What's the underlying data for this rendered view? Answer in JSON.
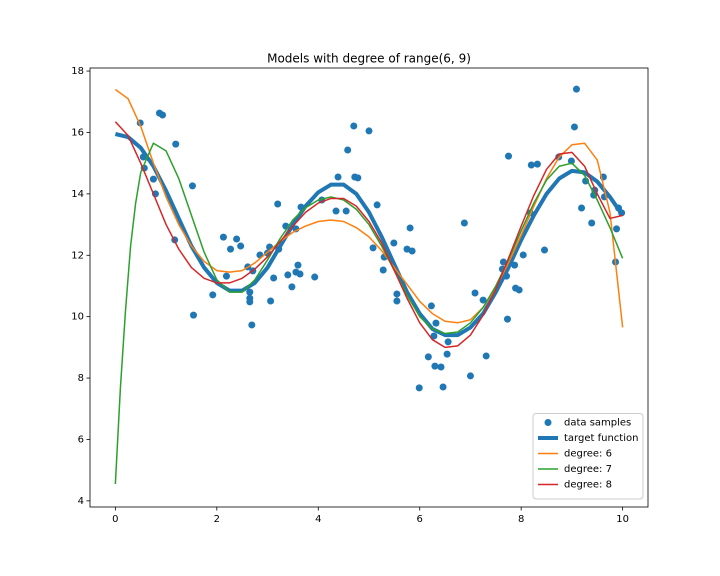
{
  "chart_data": {
    "type": "line",
    "title": "Models with degree of range(6, 9)",
    "xlim": [
      -0.5,
      10.5
    ],
    "ylim": [
      3.8,
      18.1
    ],
    "xticks": [
      0,
      2,
      4,
      6,
      8,
      10
    ],
    "yticks": [
      4,
      6,
      8,
      10,
      12,
      14,
      16,
      18
    ],
    "legend": "lower right",
    "series": [
      {
        "name": "data samples",
        "type": "scatter",
        "color": "#1f77b4",
        "x": [
          0.49,
          0.55,
          0.57,
          0.75,
          0.79,
          0.87,
          0.93,
          1.17,
          1.19,
          1.52,
          1.54,
          1.92,
          2.13,
          2.19,
          2.27,
          2.39,
          2.47,
          2.61,
          2.65,
          2.65,
          2.65,
          2.69,
          2.71,
          2.85,
          3.0,
          3.04,
          3.06,
          3.12,
          3.2,
          3.22,
          3.36,
          3.4,
          3.48,
          3.56,
          3.56,
          3.6,
          3.64,
          3.66,
          3.93,
          4.07,
          4.35,
          4.39,
          4.55,
          4.58,
          4.7,
          4.72,
          4.78,
          5.0,
          5.08,
          5.16,
          5.28,
          5.3,
          5.49,
          5.55,
          5.55,
          5.75,
          5.81,
          5.85,
          5.99,
          6.17,
          6.23,
          6.28,
          6.3,
          6.32,
          6.42,
          6.46,
          6.54,
          6.56,
          6.88,
          7.0,
          7.09,
          7.25,
          7.31,
          7.63,
          7.65,
          7.71,
          7.73,
          7.75,
          7.87,
          7.89,
          7.96,
          8.04,
          8.18,
          8.2,
          8.32,
          8.46,
          8.74,
          8.99,
          9.05,
          9.09,
          9.19,
          9.27,
          9.39,
          9.43,
          9.45,
          9.62,
          9.64,
          9.86,
          9.88,
          9.92,
          9.98
        ],
        "values": [
          16.31,
          15.2,
          14.84,
          14.48,
          14.0,
          16.63,
          16.57,
          12.5,
          15.62,
          14.26,
          10.05,
          10.71,
          12.59,
          11.32,
          12.2,
          12.53,
          12.3,
          11.62,
          10.8,
          10.6,
          10.48,
          9.73,
          11.49,
          12.01,
          12.07,
          12.27,
          10.51,
          11.26,
          13.67,
          12.2,
          12.95,
          11.36,
          10.97,
          12.86,
          11.45,
          11.68,
          11.39,
          13.57,
          11.29,
          13.8,
          13.44,
          14.55,
          13.44,
          15.43,
          16.21,
          14.55,
          14.52,
          16.05,
          12.24,
          13.64,
          11.52,
          11.94,
          12.4,
          10.74,
          10.51,
          12.2,
          12.89,
          12.14,
          7.68,
          8.69,
          10.35,
          9.37,
          8.39,
          9.79,
          8.36,
          7.71,
          8.78,
          9.18,
          13.05,
          8.07,
          10.77,
          10.54,
          8.72,
          11.55,
          11.78,
          11.32,
          9.92,
          15.23,
          11.68,
          10.93,
          10.87,
          12.01,
          13.38,
          14.94,
          14.97,
          12.17,
          15.2,
          15.07,
          16.18,
          17.41,
          13.54,
          14.42,
          13.05,
          13.96,
          14.12,
          14.55,
          13.9,
          11.78,
          12.86,
          13.54,
          13.38
        ]
      },
      {
        "name": "target function",
        "type": "line",
        "color": "#1f77b4",
        "line_width": 4,
        "x": [
          0,
          0.25,
          0.5,
          0.75,
          1,
          1.25,
          1.5,
          1.75,
          2,
          2.25,
          2.5,
          2.75,
          3,
          3.25,
          3.5,
          3.75,
          4,
          4.25,
          4.5,
          4.75,
          5,
          5.25,
          5.5,
          5.75,
          6,
          6.25,
          6.5,
          6.75,
          7,
          7.25,
          7.5,
          7.75,
          8,
          8.25,
          8.5,
          8.75,
          9,
          9.25,
          9.5,
          9.75,
          10
        ],
        "values": [
          15.95,
          15.85,
          15.5,
          14.9,
          14.1,
          13.2,
          12.3,
          11.6,
          11.1,
          10.85,
          10.85,
          11.1,
          11.6,
          12.3,
          13.0,
          13.6,
          14.05,
          14.3,
          14.3,
          14.0,
          13.4,
          12.6,
          11.7,
          10.8,
          10.1,
          9.6,
          9.4,
          9.4,
          9.65,
          10.1,
          10.8,
          11.6,
          12.5,
          13.3,
          14.0,
          14.5,
          14.75,
          14.7,
          14.4,
          13.9,
          13.3
        ]
      },
      {
        "name": "degree: 6",
        "type": "line",
        "color": "#ff7f0e",
        "line_width": 1.5,
        "x": [
          0,
          0.25,
          0.5,
          0.75,
          1,
          1.25,
          1.5,
          1.75,
          2,
          2.25,
          2.5,
          2.75,
          3,
          3.25,
          3.5,
          3.75,
          4,
          4.25,
          4.5,
          4.75,
          5,
          5.25,
          5.5,
          5.75,
          6,
          6.25,
          6.5,
          6.75,
          7,
          7.25,
          7.5,
          7.75,
          8,
          8.25,
          8.5,
          8.75,
          9,
          9.25,
          9.5,
          9.75,
          10
        ],
        "values": [
          17.4,
          17.1,
          16.2,
          15.0,
          13.9,
          13.0,
          12.3,
          11.8,
          11.5,
          11.45,
          11.5,
          11.75,
          12.1,
          12.45,
          12.75,
          12.95,
          13.1,
          13.15,
          13.1,
          12.9,
          12.6,
          12.15,
          11.6,
          11.05,
          10.5,
          10.1,
          9.85,
          9.8,
          9.9,
          10.3,
          10.95,
          11.75,
          12.65,
          13.6,
          14.5,
          15.2,
          15.6,
          15.65,
          15.1,
          13.4,
          9.65
        ]
      },
      {
        "name": "degree: 7",
        "type": "line",
        "color": "#2ca02c",
        "line_width": 1.5,
        "x": [
          0,
          0.1,
          0.2,
          0.3,
          0.4,
          0.5,
          0.75,
          1,
          1.25,
          1.5,
          1.75,
          2,
          2.25,
          2.5,
          2.75,
          3,
          3.25,
          3.5,
          3.75,
          4,
          4.25,
          4.5,
          4.75,
          5,
          5.25,
          5.5,
          5.75,
          6,
          6.25,
          6.5,
          6.75,
          7,
          7.25,
          7.5,
          7.75,
          8,
          8.25,
          8.5,
          8.75,
          9,
          9.25,
          9.5,
          9.75,
          10
        ],
        "values": [
          4.55,
          7.7,
          10.2,
          12.3,
          13.7,
          14.7,
          15.65,
          15.4,
          14.5,
          13.3,
          12.1,
          11.2,
          10.8,
          10.8,
          11.2,
          11.85,
          12.55,
          13.15,
          13.55,
          13.8,
          13.9,
          13.8,
          13.5,
          13.0,
          12.3,
          11.5,
          10.7,
          10.0,
          9.6,
          9.45,
          9.5,
          9.8,
          10.3,
          11.0,
          11.85,
          12.8,
          13.7,
          14.45,
          14.9,
          15.0,
          14.6,
          13.8,
          12.9,
          11.9
        ]
      },
      {
        "name": "degree: 8",
        "type": "line",
        "color": "#d62728",
        "line_width": 1.5,
        "x": [
          0,
          0.25,
          0.5,
          0.75,
          1,
          1.25,
          1.5,
          1.75,
          2,
          2.25,
          2.5,
          2.75,
          3,
          3.25,
          3.5,
          3.75,
          4,
          4.25,
          4.5,
          4.75,
          5,
          5.25,
          5.5,
          5.75,
          6,
          6.25,
          6.5,
          6.75,
          7,
          7.25,
          7.5,
          7.75,
          8,
          8.25,
          8.5,
          8.75,
          9,
          9.25,
          9.5,
          9.75,
          10
        ],
        "values": [
          16.35,
          15.9,
          15.0,
          14.0,
          13.0,
          12.2,
          11.6,
          11.25,
          11.1,
          11.1,
          11.25,
          11.55,
          11.95,
          12.45,
          12.95,
          13.4,
          13.7,
          13.85,
          13.85,
          13.6,
          13.1,
          12.4,
          11.5,
          10.6,
          9.8,
          9.25,
          9.0,
          9.05,
          9.4,
          10.05,
          10.9,
          11.9,
          12.95,
          13.95,
          14.8,
          15.3,
          15.35,
          14.9,
          14.0,
          13.2,
          13.3
        ]
      }
    ]
  }
}
